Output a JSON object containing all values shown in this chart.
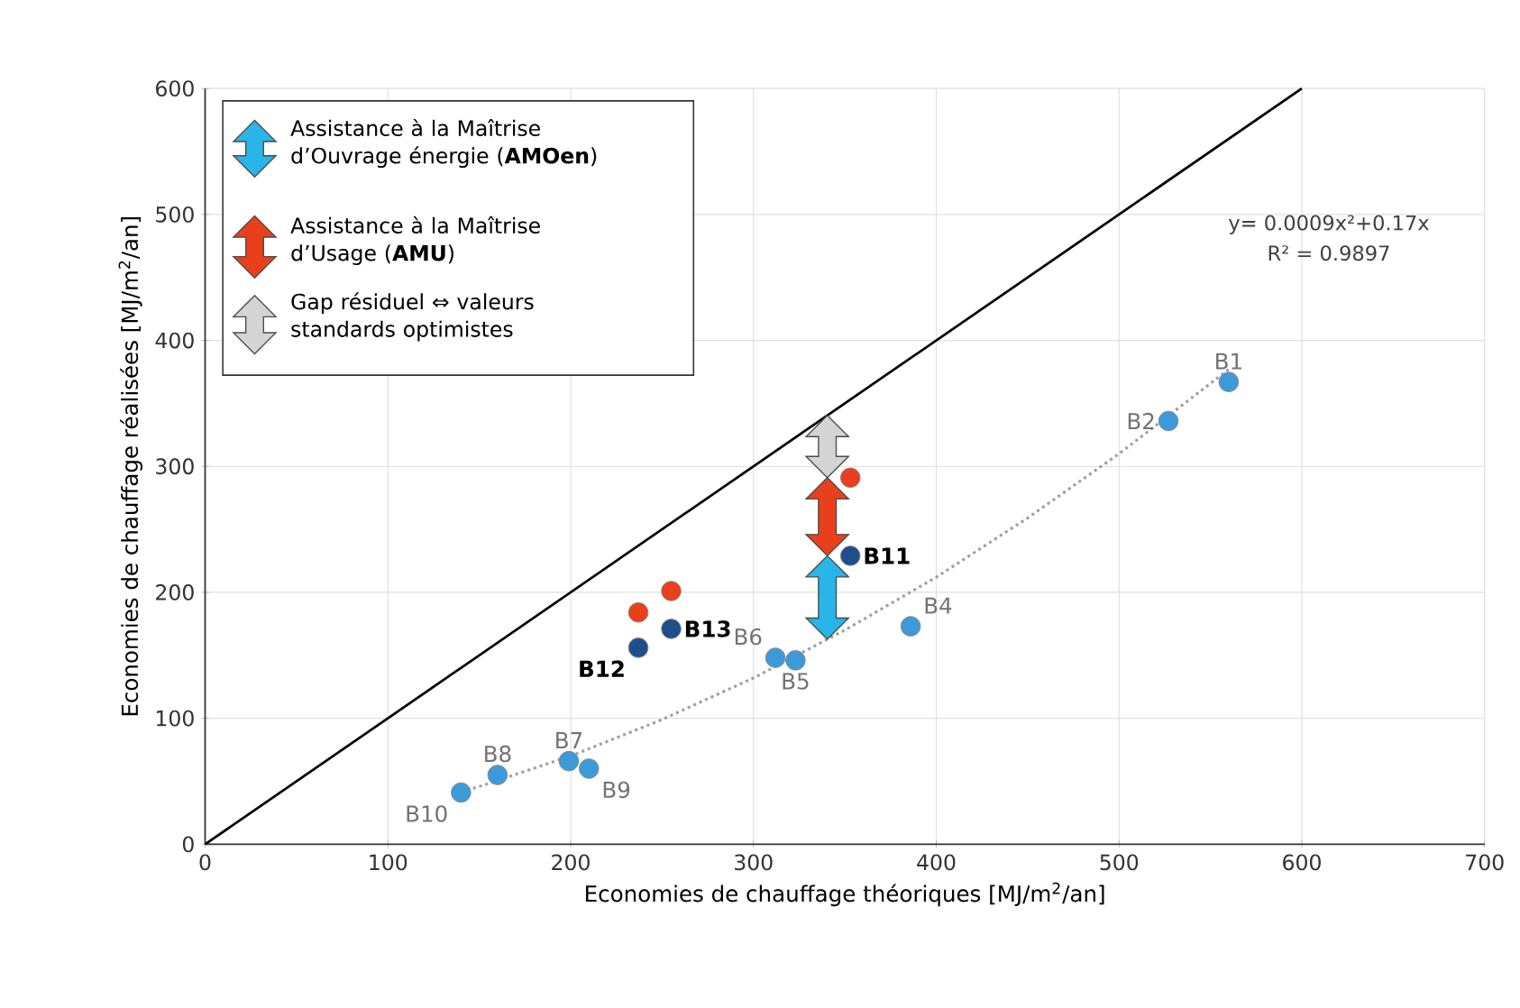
{
  "chart_data": {
    "type": "scatter",
    "xlabel": "Economies de chauffage théoriques [MJ/m$^{2}$/an]",
    "ylabel": "Economies de chauffage réalisées [MJ/m$^{2}$/an]",
    "xlim": [
      0,
      700
    ],
    "ylim": [
      0,
      600
    ],
    "xticks": [
      0,
      100,
      200,
      300,
      400,
      500,
      600,
      700
    ],
    "yticks": [
      0,
      100,
      200,
      300,
      400,
      500,
      600
    ],
    "grid": true,
    "series": [
      {
        "type": "line",
        "color": "#000000",
        "x": [
          0,
          600
        ],
        "values": [
          0,
          600
        ],
        "line_style": "solid",
        "marker": "none"
      },
      {
        "type": "line",
        "color": "#a0a0a0",
        "x": [
          140,
          200,
          250,
          300,
          350,
          400,
          450,
          500,
          560
        ],
        "values": [
          41,
          70,
          99,
          132,
          170,
          212,
          259,
          310,
          377
        ],
        "line_style": "dotted",
        "marker": "none"
      },
      {
        "color": "#3d9ad8",
        "x": [
          560,
          527,
          386,
          323,
          312,
          199,
          160,
          210,
          140
        ],
        "values": [
          367,
          336,
          173,
          146,
          148,
          66,
          55,
          60,
          41
        ],
        "value_labels": [
          "B1",
          "B2",
          "B4",
          "B5",
          "B6",
          "B7",
          "B8",
          "B9",
          "B10"
        ],
        "marker": "circle"
      },
      {
        "color": "#1f4e8c",
        "x": [
          353,
          237,
          255
        ],
        "values": [
          229,
          156,
          171
        ],
        "value_labels": [
          "B11",
          "B12",
          "B13"
        ],
        "marker": "circle"
      },
      {
        "color": "#e8401c",
        "x": [
          353,
          237,
          255
        ],
        "values": [
          291,
          184,
          201
        ],
        "marker": "circle"
      }
    ],
    "annotations": [
      "Assistance à la Maîtrise d’Ouvrage énergie (**AMOen**)",
      "Assistance à la Maîtrise d’Usage (**AMU**)",
      "Gap résiduel ⇔ valeurs standards optimistes",
      "y= 0.0009x²+0.17x",
      "R² = 0.9897"
    ]
  }
}
